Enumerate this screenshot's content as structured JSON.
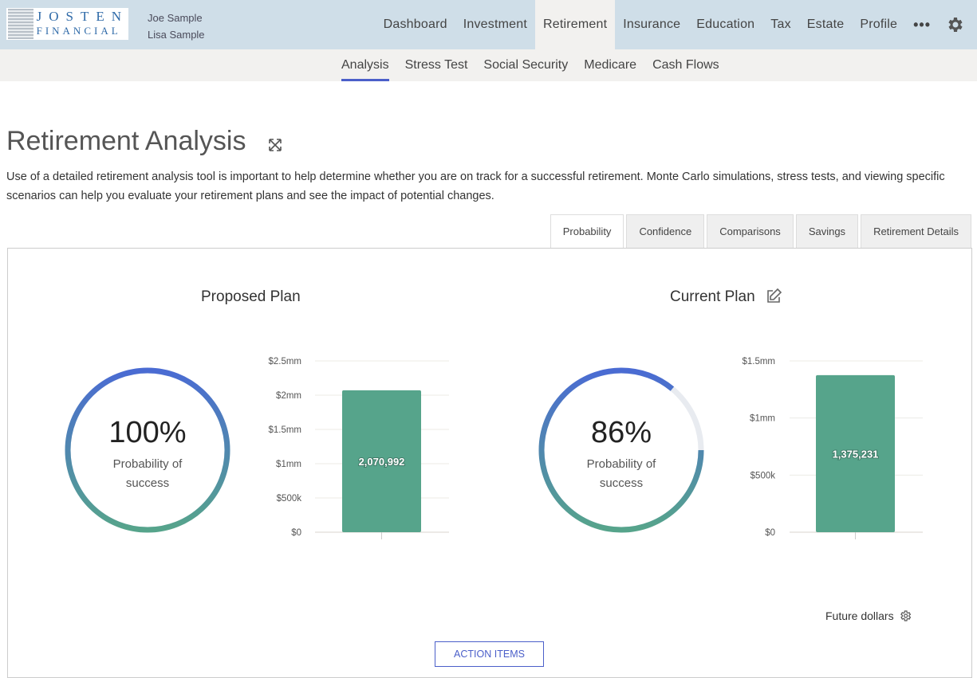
{
  "header": {
    "logo_line1": "JOSTEN",
    "logo_line2": "FINANCIAL",
    "users": [
      "Joe Sample",
      "Lisa Sample"
    ],
    "nav": [
      "Dashboard",
      "Investment",
      "Retirement",
      "Insurance",
      "Education",
      "Tax",
      "Estate",
      "Profile"
    ],
    "nav_active": "Retirement",
    "more": "•••",
    "settings_icon": "gear-icon"
  },
  "subnav": {
    "items": [
      "Analysis",
      "Stress Test",
      "Social Security",
      "Medicare",
      "Cash Flows"
    ],
    "active": "Analysis"
  },
  "page": {
    "title": "Retirement Analysis",
    "expand_icon": "expand-icon",
    "description": "Use of a detailed retirement analysis tool is important to help determine whether you are on track for a successful retirement. Monte Carlo simulations, stress tests, and viewing specific scenarios can help you evaluate your retirement plans and see the impact of potential changes."
  },
  "tabs": [
    "Probability",
    "Confidence",
    "Comparisons",
    "Savings",
    "Retirement Details"
  ],
  "active_tab": "Probability",
  "plans": [
    {
      "title": "Proposed Plan",
      "probability": 100,
      "probability_label": "100%",
      "caption_line1": "Probability of",
      "caption_line2": "success"
    },
    {
      "title": "Current Plan",
      "probability": 86,
      "probability_label": "86%",
      "caption_line1": "Probability of",
      "caption_line2": "success",
      "edit_icon": "edit-icon"
    }
  ],
  "chart_data": [
    {
      "type": "bar",
      "values": [
        2070992
      ],
      "data_labels": [
        "2,070,992"
      ],
      "ylim": [
        0,
        2500000
      ],
      "ticks": [
        0,
        500000,
        1000000,
        1500000,
        2000000,
        2500000
      ],
      "tick_labels": [
        "$0",
        "$500k",
        "$1mm",
        "$1.5mm",
        "$2mm",
        "$2.5mm"
      ],
      "color": "#56a48b",
      "grid": true
    },
    {
      "type": "bar",
      "values": [
        1375231
      ],
      "data_labels": [
        "1,375,231"
      ],
      "ylim": [
        0,
        1500000
      ],
      "ticks": [
        0,
        500000,
        1000000,
        1500000
      ],
      "tick_labels": [
        "$0",
        "$500k",
        "$1mm",
        "$1.5mm"
      ],
      "color": "#56a48b",
      "grid": true
    }
  ],
  "footer": {
    "dollars_mode": "Future dollars",
    "action_items": "ACTION ITEMS"
  },
  "colors": {
    "accent": "#4b5fc9",
    "ring_start": "#4a6bd3",
    "ring_end": "#56a48b",
    "ring_track": "#e8ebf0"
  }
}
